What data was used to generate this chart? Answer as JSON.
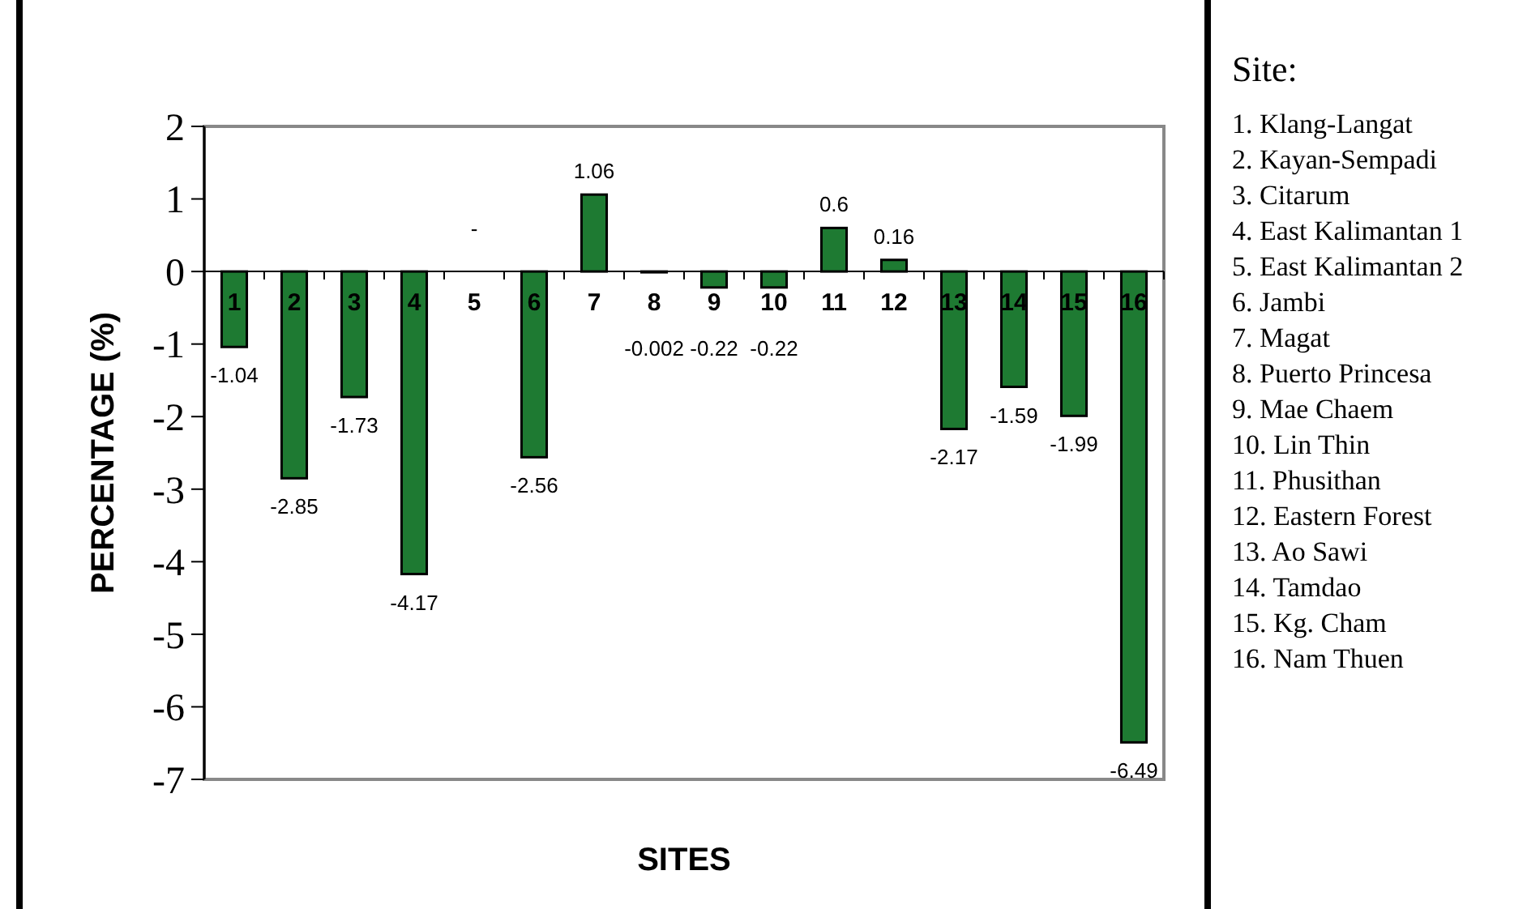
{
  "chart_data": {
    "type": "bar",
    "xlabel": "SITES",
    "ylabel": "PERCENTAGE (%)",
    "categories": [
      "1",
      "2",
      "3",
      "4",
      "5",
      "6",
      "7",
      "8",
      "9",
      "10",
      "11",
      "12",
      "13",
      "14",
      "15",
      "16"
    ],
    "values": [
      -1.04,
      -2.85,
      -1.73,
      -4.17,
      null,
      -2.56,
      1.06,
      -0.002,
      -0.22,
      -0.22,
      0.6,
      0.16,
      -2.17,
      -1.59,
      -1.99,
      -6.49
    ],
    "value_labels": [
      "-1.04",
      "-2.85",
      "-1.73",
      "-4.17",
      "-",
      "-2.56",
      "1.06",
      "-0.002",
      "-0.22",
      "-0.22",
      "0.6",
      "0.16",
      "-2.17",
      "-1.59",
      "-1.99",
      "-6.49"
    ],
    "color": "#1e7a32",
    "ylim": [
      -7,
      2
    ],
    "yticks": [
      -7,
      -6,
      -5,
      -4,
      -3,
      -2,
      -1,
      0,
      1,
      2
    ],
    "grid": false,
    "annotations": [
      "Site:",
      "1. Klang-Langat",
      "2. Kayan-Sempadi",
      "3. Citarum",
      "4. East Kalimantan 1",
      "5. East Kalimantan 2",
      "6. Jambi",
      "7. Magat",
      "8. Puerto Princesa",
      "9. Mae Chaem",
      "10. Lin Thin",
      "11. Phusithan",
      "12. Eastern Forest",
      "13. Ao Sawi",
      "14. Tamdao",
      "15. Kg. Cham",
      "16. Nam Thuen"
    ]
  }
}
